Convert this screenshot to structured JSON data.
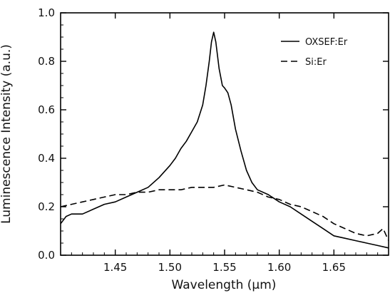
{
  "chart_data": {
    "type": "line",
    "xlabel": "Wavelength (μm)",
    "ylabel": "Luminescence Intensity (a.u.)",
    "xlim": [
      1.4,
      1.7
    ],
    "ylim": [
      0.0,
      1.0
    ],
    "xticks": [
      "1.45",
      "1.50",
      "1.55",
      "1.60",
      "1.65"
    ],
    "xtick_values": [
      1.45,
      1.5,
      1.55,
      1.6,
      1.65
    ],
    "yticks": [
      "0.0",
      "0.2",
      "0.4",
      "0.6",
      "0.8",
      "1.0"
    ],
    "ytick_values": [
      0.0,
      0.2,
      0.4,
      0.6,
      0.8,
      1.0
    ],
    "grid": false,
    "legend_position": "top-right",
    "series": [
      {
        "name": "OXSEF:Er",
        "style": "solid",
        "color": "#000000",
        "x": [
          1.4,
          1.405,
          1.41,
          1.42,
          1.43,
          1.44,
          1.45,
          1.46,
          1.47,
          1.48,
          1.49,
          1.5,
          1.505,
          1.51,
          1.515,
          1.52,
          1.525,
          1.53,
          1.533,
          1.536,
          1.538,
          1.54,
          1.542,
          1.545,
          1.548,
          1.55,
          1.553,
          1.556,
          1.56,
          1.565,
          1.57,
          1.575,
          1.58,
          1.59,
          1.6,
          1.61,
          1.62,
          1.63,
          1.64,
          1.65,
          1.66,
          1.67,
          1.68,
          1.69,
          1.7
        ],
        "y": [
          0.13,
          0.16,
          0.17,
          0.17,
          0.19,
          0.21,
          0.22,
          0.24,
          0.26,
          0.28,
          0.32,
          0.37,
          0.4,
          0.44,
          0.47,
          0.51,
          0.55,
          0.62,
          0.7,
          0.8,
          0.88,
          0.92,
          0.88,
          0.77,
          0.7,
          0.69,
          0.67,
          0.62,
          0.52,
          0.43,
          0.35,
          0.3,
          0.27,
          0.25,
          0.22,
          0.2,
          0.17,
          0.14,
          0.11,
          0.08,
          0.07,
          0.06,
          0.05,
          0.04,
          0.03
        ]
      },
      {
        "name": "Si:Er",
        "style": "dashed",
        "color": "#000000",
        "x": [
          1.4,
          1.41,
          1.42,
          1.43,
          1.44,
          1.45,
          1.46,
          1.47,
          1.48,
          1.49,
          1.5,
          1.51,
          1.52,
          1.53,
          1.54,
          1.55,
          1.56,
          1.57,
          1.58,
          1.59,
          1.6,
          1.61,
          1.62,
          1.63,
          1.64,
          1.65,
          1.66,
          1.67,
          1.68,
          1.69,
          1.695,
          1.7
        ],
        "y": [
          0.2,
          0.21,
          0.22,
          0.23,
          0.24,
          0.25,
          0.25,
          0.26,
          0.26,
          0.27,
          0.27,
          0.27,
          0.28,
          0.28,
          0.28,
          0.29,
          0.28,
          0.27,
          0.26,
          0.24,
          0.23,
          0.21,
          0.2,
          0.18,
          0.16,
          0.13,
          0.11,
          0.09,
          0.08,
          0.09,
          0.11,
          0.06
        ]
      }
    ]
  }
}
